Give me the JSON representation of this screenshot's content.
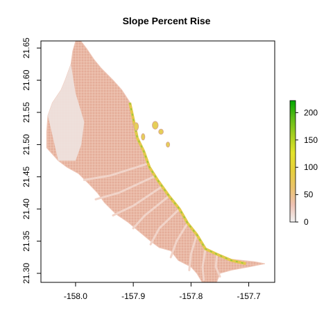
{
  "title": "Slope Percent Rise",
  "chart_data": {
    "type": "heatmap",
    "title": "Slope Percent Rise",
    "xlabel": "",
    "ylabel": "",
    "xlim": [
      -158.06,
      -157.655
    ],
    "ylim": [
      21.286,
      21.661
    ],
    "x_ticks": [
      {
        "value": -158.0,
        "label": "-158.0"
      },
      {
        "value": -157.9,
        "label": "-157.9"
      },
      {
        "value": -157.8,
        "label": "-157.8"
      },
      {
        "value": -157.7,
        "label": "-157.7"
      }
    ],
    "y_ticks": [
      {
        "value": 21.3,
        "label": "21.30"
      },
      {
        "value": 21.35,
        "label": "21.35"
      },
      {
        "value": 21.4,
        "label": "21.40"
      },
      {
        "value": 21.45,
        "label": "21.45"
      },
      {
        "value": 21.5,
        "label": "21.50"
      },
      {
        "value": 21.55,
        "label": "21.55"
      },
      {
        "value": 21.6,
        "label": "21.60"
      },
      {
        "value": 21.65,
        "label": "21.65"
      }
    ],
    "legend": {
      "placement": "right",
      "min": 0,
      "max": 222,
      "ticks": [
        {
          "value": 0,
          "label": "0"
        },
        {
          "value": 50,
          "label": "50"
        },
        {
          "value": 100,
          "label": "100"
        },
        {
          "value": 150,
          "label": "150"
        },
        {
          "value": 200,
          "label": "200"
        }
      ],
      "colors": [
        "#f2f2f2",
        "#efc2b3",
        "#eac36a",
        "#e6d03a",
        "#e3e32b",
        "#a6cf1f",
        "#5fbc17",
        "#00a600"
      ]
    },
    "ridge_line": [
      [
        -157.906,
        21.565
      ],
      [
        -157.9,
        21.54
      ],
      [
        -157.893,
        21.51
      ],
      [
        -157.882,
        21.49
      ],
      [
        -157.872,
        21.465
      ],
      [
        -157.858,
        21.445
      ],
      [
        -157.838,
        21.42
      ],
      [
        -157.82,
        21.4
      ],
      [
        -157.806,
        21.378
      ],
      [
        -157.79,
        21.36
      ],
      [
        -157.775,
        21.338
      ],
      [
        -157.756,
        21.33
      ],
      [
        -157.73,
        21.32
      ],
      [
        -157.705,
        21.315
      ]
    ],
    "terrain_outline": [
      [
        -157.998,
        21.667
      ],
      [
        -157.99,
        21.66
      ],
      [
        -157.98,
        21.648
      ],
      [
        -157.968,
        21.632
      ],
      [
        -157.955,
        21.618
      ],
      [
        -157.935,
        21.6
      ],
      [
        -157.92,
        21.585
      ],
      [
        -157.906,
        21.566
      ],
      [
        -157.9,
        21.54
      ],
      [
        -157.893,
        21.51
      ],
      [
        -157.882,
        21.49
      ],
      [
        -157.872,
        21.465
      ],
      [
        -157.858,
        21.445
      ],
      [
        -157.838,
        21.42
      ],
      [
        -157.82,
        21.4
      ],
      [
        -157.806,
        21.378
      ],
      [
        -157.79,
        21.36
      ],
      [
        -157.775,
        21.338
      ],
      [
        -157.756,
        21.33
      ],
      [
        -157.73,
        21.322
      ],
      [
        -157.69,
        21.318
      ],
      [
        -157.672,
        21.315
      ],
      [
        -157.7,
        21.31
      ],
      [
        -157.73,
        21.305
      ],
      [
        -157.75,
        21.3
      ],
      [
        -157.758,
        21.28
      ],
      [
        -157.78,
        21.285
      ],
      [
        -157.79,
        21.3
      ],
      [
        -157.8,
        21.31
      ],
      [
        -157.822,
        21.32
      ],
      [
        -157.835,
        21.335
      ],
      [
        -157.855,
        21.34
      ],
      [
        -157.87,
        21.35
      ],
      [
        -157.89,
        21.365
      ],
      [
        -157.91,
        21.38
      ],
      [
        -157.93,
        21.392
      ],
      [
        -157.95,
        21.41
      ],
      [
        -157.962,
        21.425
      ],
      [
        -157.978,
        21.44
      ],
      [
        -157.995,
        21.455
      ],
      [
        -158.015,
        21.465
      ],
      [
        -158.03,
        21.475
      ],
      [
        -158.05,
        21.495
      ],
      [
        -158.05,
        21.52
      ],
      [
        -158.048,
        21.545
      ],
      [
        -158.04,
        21.565
      ],
      [
        -158.025,
        21.585
      ],
      [
        -158.018,
        21.6
      ],
      [
        -158.008,
        21.625
      ],
      [
        -158.005,
        21.645
      ]
    ],
    "valleys": [
      [
        [
          -157.876,
          21.47
        ],
        [
          -157.94,
          21.452
        ],
        [
          -157.985,
          21.445
        ]
      ],
      [
        [
          -157.865,
          21.45
        ],
        [
          -157.925,
          21.425
        ],
        [
          -157.965,
          21.415
        ]
      ],
      [
        [
          -157.85,
          21.435
        ],
        [
          -157.9,
          21.405
        ],
        [
          -157.935,
          21.39
        ]
      ],
      [
        [
          -157.838,
          21.42
        ],
        [
          -157.88,
          21.39
        ],
        [
          -157.9,
          21.37
        ]
      ],
      [
        [
          -157.82,
          21.4
        ],
        [
          -157.855,
          21.37
        ],
        [
          -157.87,
          21.345
        ]
      ],
      [
        [
          -157.806,
          21.378
        ],
        [
          -157.825,
          21.35
        ],
        [
          -157.835,
          21.325
        ]
      ],
      [
        [
          -157.79,
          21.36
        ],
        [
          -157.8,
          21.33
        ],
        [
          -157.803,
          21.305
        ]
      ],
      [
        [
          -157.775,
          21.338
        ],
        [
          -157.78,
          21.31
        ],
        [
          -157.778,
          21.29
        ]
      ],
      [
        [
          -157.755,
          21.33
        ],
        [
          -157.757,
          21.31
        ],
        [
          -157.75,
          21.295
        ]
      ]
    ],
    "islands": [
      {
        "x": -157.895,
        "y": 21.528,
        "rx": 0.004,
        "ry": 0.006
      },
      {
        "x": -157.883,
        "y": 21.512,
        "rx": 0.003,
        "ry": 0.005
      },
      {
        "x": -157.862,
        "y": 21.53,
        "rx": 0.005,
        "ry": 0.006
      },
      {
        "x": -157.852,
        "y": 21.52,
        "rx": 0.004,
        "ry": 0.004
      },
      {
        "x": -157.84,
        "y": 21.5,
        "rx": 0.003,
        "ry": 0.004
      }
    ]
  }
}
